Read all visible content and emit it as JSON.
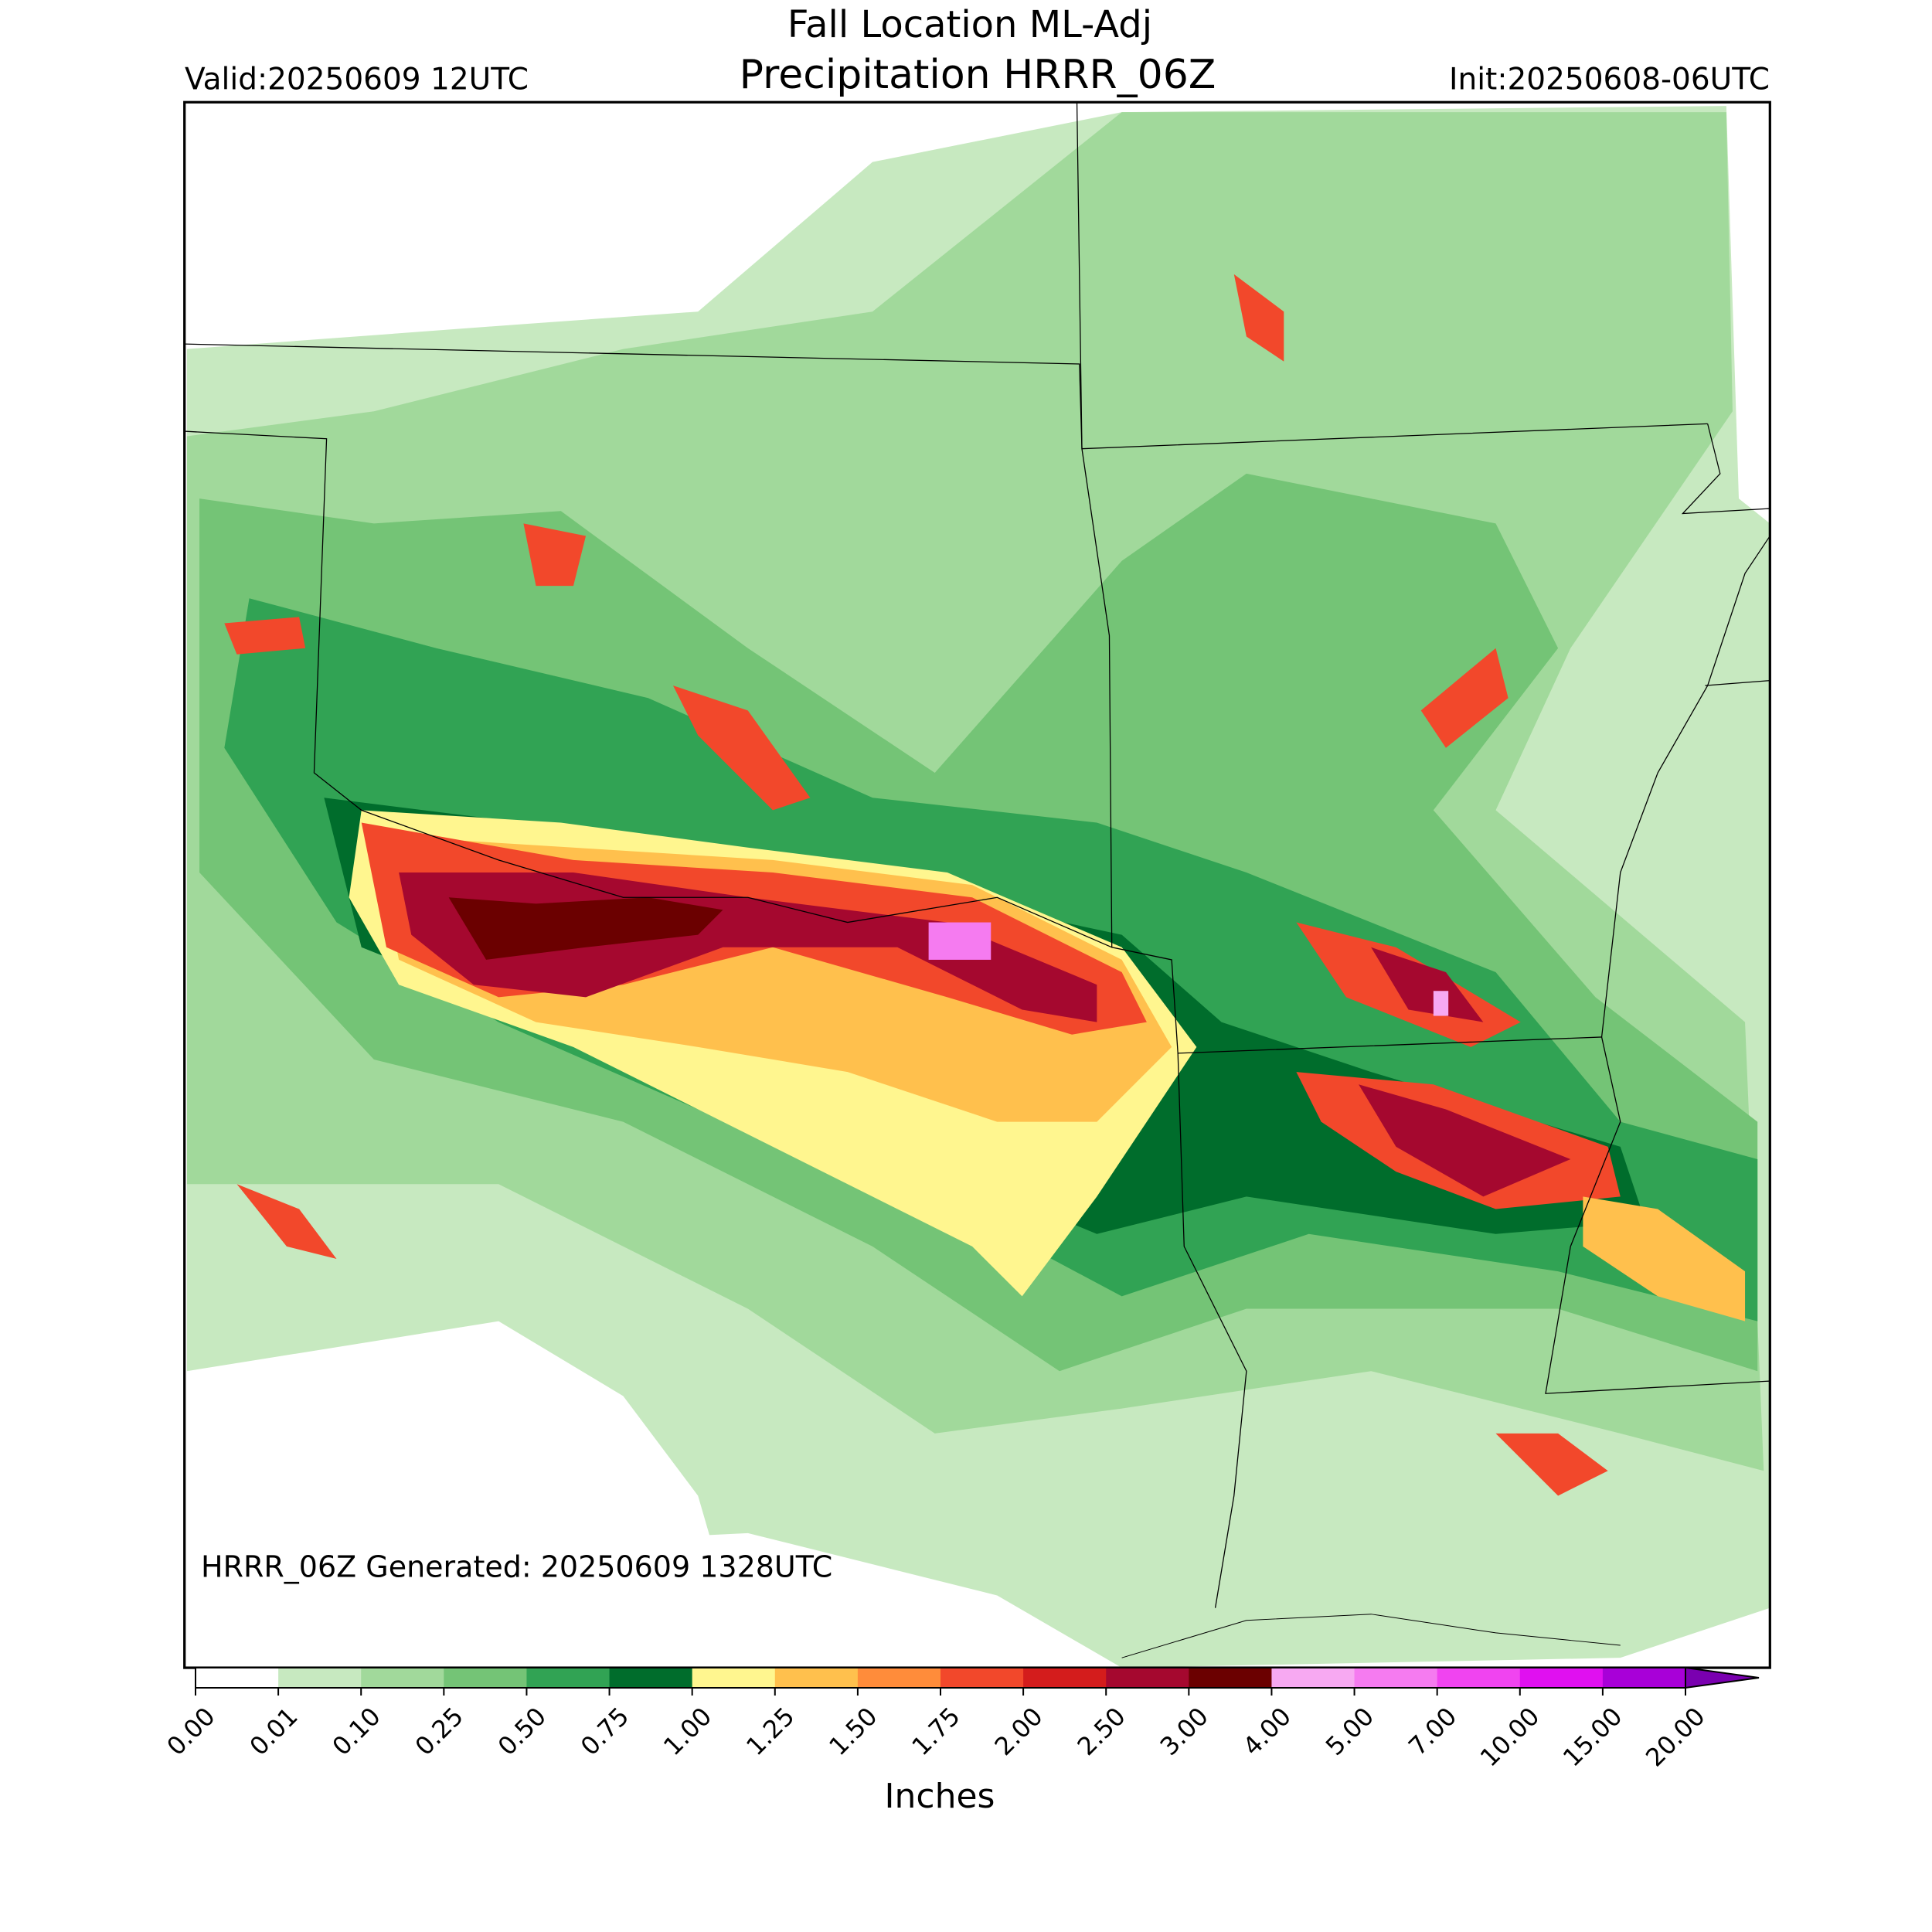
{
  "title": "Fall Location ML-Adj",
  "subtitle": "Precipitation HRRR_06Z",
  "valid_label": "Valid:20250609 12UTC",
  "init_label": "Init:20250608-06UTC",
  "footnote": "HRRR_06Z Generated: 20250609 1328UTC",
  "colorbar": {
    "label": "Inches",
    "ticks": [
      {
        "value": 0,
        "label": "0.00"
      },
      {
        "value": 0.01,
        "label": "0.01"
      },
      {
        "value": 0.1,
        "label": "0.10"
      },
      {
        "value": 0.25,
        "label": "0.25"
      },
      {
        "value": 0.5,
        "label": "0.50"
      },
      {
        "value": 0.75,
        "label": "0.75"
      },
      {
        "value": 1,
        "label": "1.00"
      },
      {
        "value": 1.25,
        "label": "1.25"
      },
      {
        "value": 1.5,
        "label": "1.50"
      },
      {
        "value": 1.75,
        "label": "1.75"
      },
      {
        "value": 2,
        "label": "2.00"
      },
      {
        "value": 2.5,
        "label": "2.50"
      },
      {
        "value": 3,
        "label": "3.00"
      },
      {
        "value": 4,
        "label": "4.00"
      },
      {
        "value": 5,
        "label": "5.00"
      },
      {
        "value": 7,
        "label": "7.00"
      },
      {
        "value": 10,
        "label": "10.00"
      },
      {
        "value": 15,
        "label": "15.00"
      },
      {
        "value": 20,
        "label": "20.00"
      }
    ],
    "colors": [
      "#ffffff",
      "#c7e9c0",
      "#a1d99b",
      "#74c476",
      "#31a354",
      "#006d2c",
      "#fff68f",
      "#ffc04d",
      "#ff8c3a",
      "#f2482b",
      "#d41c1c",
      "#a5082f",
      "#6b0000",
      "#f7a9f2",
      "#f57bf0",
      "#f044f0",
      "#e010f0",
      "#a800d8"
    ],
    "extend_color": "#7a00b0"
  }
}
